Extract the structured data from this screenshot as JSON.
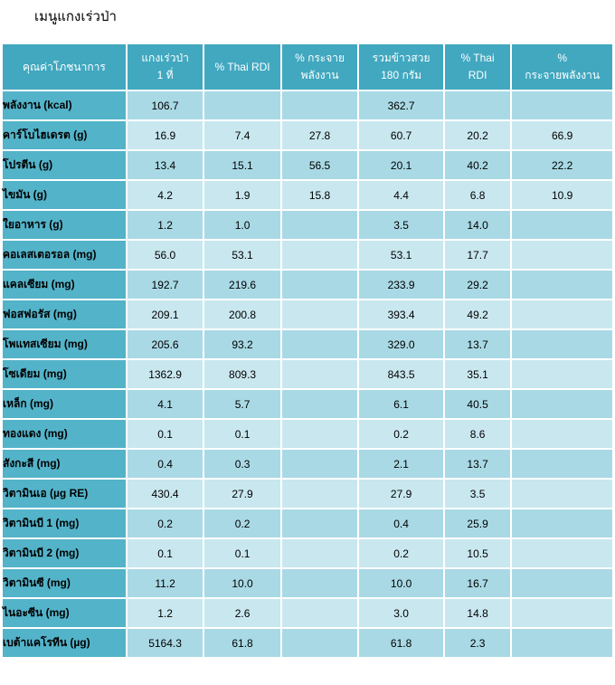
{
  "title": "เมนูแกงเร่วป่า",
  "headers": [
    "คุณค่าโภชนาการ",
    "แกงเร่วป่า\n1 ที่",
    "% Thai RDI",
    "% กระจาย\nพลังงาน",
    "รวมข้าวสวย\n180 กรัม",
    "% Thai\nRDI",
    "%\nกระจายพลังงาน"
  ],
  "rows": [
    [
      "พลังงาน (kcal)",
      "106.7",
      "",
      "",
      "362.7",
      "",
      ""
    ],
    [
      "คาร์โบไฮเดรต (g)",
      "16.9",
      "7.4",
      "27.8",
      "60.7",
      "20.2",
      "66.9"
    ],
    [
      "โปรตีน (g)",
      "13.4",
      "15.1",
      "56.5",
      "20.1",
      "40.2",
      "22.2"
    ],
    [
      "ไขมัน (g)",
      "4.2",
      "1.9",
      "15.8",
      "4.4",
      "6.8",
      "10.9"
    ],
    [
      "ใยอาหาร (g)",
      "1.2",
      "1.0",
      "",
      "3.5",
      "14.0",
      ""
    ],
    [
      "คอเลสเตอรอล (mg)",
      "56.0",
      "53.1",
      "",
      "53.1",
      "17.7",
      ""
    ],
    [
      "แคลเซียม (mg)",
      "192.7",
      "219.6",
      "",
      "233.9",
      "29.2",
      ""
    ],
    [
      "ฟอสฟอรัส (mg)",
      "209.1",
      "200.8",
      "",
      "393.4",
      "49.2",
      ""
    ],
    [
      "โพแทสเซียม (mg)",
      "205.6",
      "93.2",
      "",
      "329.0",
      "13.7",
      ""
    ],
    [
      "โซเดียม (mg)",
      "1362.9",
      "809.3",
      "",
      "843.5",
      "35.1",
      ""
    ],
    [
      "เหล็ก (mg)",
      "4.1",
      "5.7",
      "",
      "6.1",
      "40.5",
      ""
    ],
    [
      "ทองแดง (mg)",
      "0.1",
      "0.1",
      "",
      "0.2",
      "8.6",
      ""
    ],
    [
      "สังกะสี (mg)",
      "0.4",
      "0.3",
      "",
      "2.1",
      "13.7",
      ""
    ],
    [
      "วิตามินเอ (µg RE)",
      "430.4",
      "27.9",
      "",
      "27.9",
      "3.5",
      ""
    ],
    [
      "วิตามินบี 1 (mg)",
      "0.2",
      "0.2",
      "",
      "0.4",
      "25.9",
      ""
    ],
    [
      "วิตามินบี 2 (mg)",
      "0.1",
      "0.1",
      "",
      "0.2",
      "10.5",
      ""
    ],
    [
      "วิตามินซี (mg)",
      "11.2",
      "10.0",
      "",
      "10.0",
      "16.7",
      ""
    ],
    [
      "ไนอะซีน (mg)",
      "1.2",
      "2.6",
      "",
      "3.0",
      "14.8",
      ""
    ],
    [
      "เบต้าแคโรทีน (µg)",
      "5164.3",
      "61.8",
      "",
      "61.8",
      "2.3",
      ""
    ]
  ]
}
